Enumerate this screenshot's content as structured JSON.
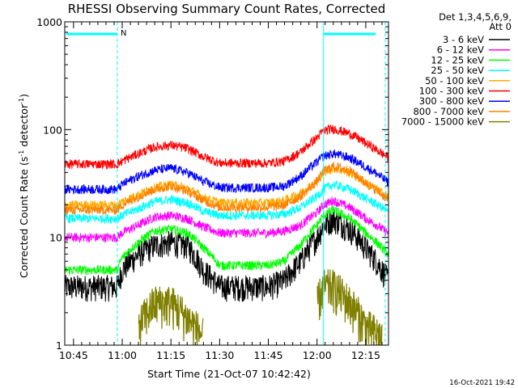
{
  "chart_data": {
    "type": "line",
    "title": "RHESSI Observing Summary Count Rates, Corrected",
    "xlabel": "Start Time (21-Oct-07 10:42:42)",
    "ylabel_main": "Corrected Count Rate (s",
    "ylabel_sup1": "-1",
    "ylabel_mid": " detector",
    "ylabel_sup2": "-1",
    "ylabel_end": ")",
    "x_range_minutes": [
      -2.7,
      97.0
    ],
    "y_range": [
      1,
      1000
    ],
    "yscale": "log",
    "x_ticks": [
      {
        "t": 0,
        "label": "10:45"
      },
      {
        "t": 15,
        "label": "11:00"
      },
      {
        "t": 30,
        "label": "11:15"
      },
      {
        "t": 45,
        "label": "11:30"
      },
      {
        "t": 60,
        "label": "11:45"
      },
      {
        "t": 75,
        "label": "12:00"
      },
      {
        "t": 90,
        "label": "12:15"
      }
    ],
    "y_ticks": [
      {
        "v": 1,
        "label": "1"
      },
      {
        "v": 10,
        "label": "10"
      },
      {
        "v": 100,
        "label": "100"
      },
      {
        "v": 1000,
        "label": "1000"
      }
    ],
    "legend_header": [
      "Det 1,3,4,5,6,9,",
      "Att 0"
    ],
    "legend_position": "right",
    "time_points_minutes": [
      -2.7,
      0,
      5,
      10,
      13.5,
      15,
      20,
      25,
      30,
      35,
      40,
      45,
      50,
      55,
      60,
      65,
      70,
      75,
      77,
      80,
      85,
      90,
      95,
      97
    ],
    "series": [
      {
        "name": "3 - 6 keV",
        "color": "#000000",
        "values": [
          3.5,
          3.5,
          3.5,
          3.5,
          3.5,
          5,
          7,
          8.5,
          9,
          8.5,
          5,
          3.5,
          3.5,
          3.5,
          3.5,
          4,
          6,
          10,
          13,
          15,
          12,
          8,
          5,
          4
        ]
      },
      {
        "name": "6 - 12 keV",
        "color": "#ff00ff",
        "values": [
          10,
          10,
          10,
          10,
          10,
          11,
          13,
          15.5,
          16,
          15,
          12.5,
          11,
          11,
          11,
          11,
          11.5,
          13,
          17,
          20,
          22,
          19,
          15,
          12,
          11
        ]
      },
      {
        "name": "12 - 25 keV",
        "color": "#00ff00",
        "values": [
          5,
          5,
          5,
          5,
          5,
          6.5,
          9,
          11.5,
          12,
          11,
          8,
          5.5,
          5.5,
          5.5,
          5.5,
          6,
          8.5,
          13,
          16,
          18,
          15,
          11,
          8,
          7
        ]
      },
      {
        "name": "25 - 50 keV",
        "color": "#00ffff",
        "values": [
          15,
          15,
          15,
          15,
          15,
          16,
          18.5,
          21.5,
          22.5,
          21,
          17.5,
          16,
          16,
          16,
          16,
          16.5,
          19,
          24,
          28,
          31,
          28,
          23,
          19,
          17
        ]
      },
      {
        "name": "50 - 100 keV",
        "color": "#ffaa00",
        "values": [
          20,
          20,
          20,
          20,
          20,
          21.5,
          25,
          29,
          31,
          28.5,
          23.5,
          21,
          21,
          21,
          21,
          22,
          26,
          33,
          40,
          44,
          40,
          32,
          26,
          24
        ]
      },
      {
        "name": "100 - 300 keV",
        "color": "#ff0000",
        "values": [
          48,
          48,
          48,
          48,
          48,
          51,
          60,
          69,
          72,
          67,
          56,
          49,
          49,
          49,
          49,
          51,
          62,
          84,
          98,
          102,
          92,
          75,
          60,
          55
        ]
      },
      {
        "name": "300 - 800 keV",
        "color": "#0000ff",
        "values": [
          28,
          28,
          28,
          28,
          28,
          31,
          37,
          42,
          44,
          40,
          33,
          29,
          29,
          29,
          29,
          30,
          37,
          50,
          57,
          60,
          55,
          45,
          36,
          32
        ]
      },
      {
        "name": "800 - 7000 keV",
        "color": "#ff8000",
        "values": [
          18,
          18,
          18,
          18,
          18,
          20,
          24,
          28,
          30,
          27,
          22,
          19,
          19,
          19,
          19,
          20,
          24,
          33,
          41,
          46,
          42,
          32,
          25,
          22
        ]
      },
      {
        "name": "7000 - 15000 keV",
        "color": "#808000",
        "values": [
          null,
          null,
          null,
          null,
          null,
          null,
          1.5,
          2.5,
          2.5,
          1.8,
          1.2,
          null,
          null,
          null,
          null,
          null,
          null,
          2.5,
          3.5,
          3.5,
          2.5,
          1.5,
          1.2,
          null
        ]
      }
    ],
    "annotations": {
      "flag_N_label": "N",
      "flag_bars": [
        [
          -2.7,
          13.5
        ],
        [
          77,
          97
        ]
      ],
      "boundary_lines": [
        -2.7,
        13.5,
        77,
        96
      ]
    },
    "footer_stamp": "16-Oct-2021 19:42"
  },
  "colors": {
    "flag": "#00ffff",
    "axis": "#000000",
    "background": "#ffffff"
  }
}
